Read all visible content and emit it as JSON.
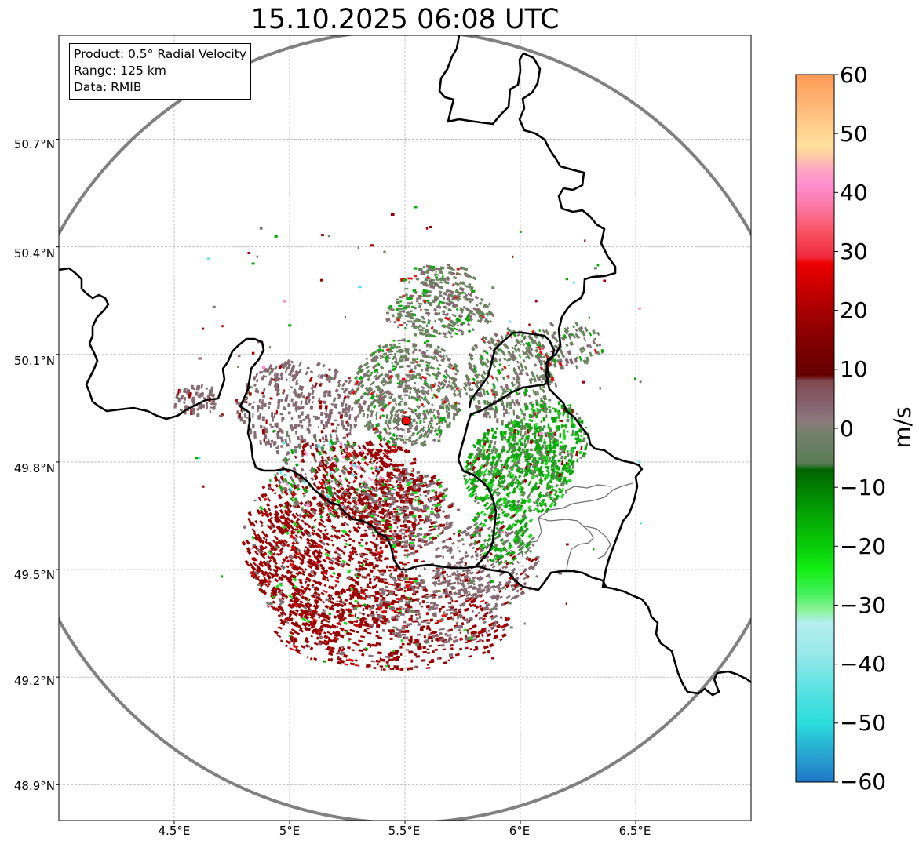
{
  "title": "15.10.2025 06:08 UTC",
  "info_box": {
    "product": "Product: 0.5° Radial Velocity",
    "range": "Range: 125 km",
    "data": "Data: RMIB"
  },
  "axes": {
    "lat_labels": [
      "50.7°N",
      "50.4°N",
      "50.1°N",
      "49.8°N",
      "49.5°N",
      "49.2°N",
      "48.9°N"
    ],
    "lon_labels": [
      "4.5°E",
      "5°E",
      "5.5°E",
      "6°E",
      "6.5°E"
    ],
    "lat_values": [
      50.7,
      50.4,
      50.1,
      49.8,
      49.5,
      49.2,
      48.9
    ],
    "lon_values": [
      4.5,
      5.0,
      5.5,
      6.0,
      6.5
    ],
    "lon_range": [
      4.0,
      7.0
    ],
    "lat_range": [
      48.8,
      50.99
    ]
  },
  "radar_site": {
    "lon": 5.505,
    "lat": 49.915
  },
  "colorbar": {
    "unit": "m/s",
    "vmin": -60,
    "vmax": 60,
    "ticks": [
      "60",
      "50",
      "40",
      "30",
      "20",
      "10",
      "0",
      "−10",
      "−20",
      "−30",
      "−40",
      "−50",
      "−60"
    ],
    "stops": [
      {
        "v": -60,
        "c": "#1f78c8"
      },
      {
        "v": -55,
        "c": "#28a8d2"
      },
      {
        "v": -50,
        "c": "#2adcdc"
      },
      {
        "v": -44,
        "c": "#5ce2e2"
      },
      {
        "v": -38,
        "c": "#9ae8ea"
      },
      {
        "v": -33,
        "c": "#b4eef0"
      },
      {
        "v": -31,
        "c": "#8df29e"
      },
      {
        "v": -28,
        "c": "#44f05a"
      },
      {
        "v": -24,
        "c": "#14ee14"
      },
      {
        "v": -20,
        "c": "#08cc08"
      },
      {
        "v": -14,
        "c": "#03a003"
      },
      {
        "v": -7,
        "c": "#006400"
      },
      {
        "v": -6,
        "c": "#5a7c56"
      },
      {
        "v": -1,
        "c": "#73826c"
      },
      {
        "v": 1,
        "c": "#8c7c7c"
      },
      {
        "v": 4,
        "c": "#866370"
      },
      {
        "v": 8,
        "c": "#824850"
      },
      {
        "v": 9,
        "c": "#650000"
      },
      {
        "v": 14,
        "c": "#7e0000"
      },
      {
        "v": 20,
        "c": "#a80000"
      },
      {
        "v": 25,
        "c": "#d40000"
      },
      {
        "v": 28,
        "c": "#ee0000"
      },
      {
        "v": 29,
        "c": "#f0283c"
      },
      {
        "v": 33,
        "c": "#f85060"
      },
      {
        "v": 38,
        "c": "#fc7aa8"
      },
      {
        "v": 41,
        "c": "#ff8ccc"
      },
      {
        "v": 44,
        "c": "#ffa6c6"
      },
      {
        "v": 46,
        "c": "#ffc8a8"
      },
      {
        "v": 48,
        "c": "#ffe09a"
      },
      {
        "v": 52,
        "c": "#ffc888"
      },
      {
        "v": 56,
        "c": "#ffb070"
      },
      {
        "v": 60,
        "c": "#ff9a55"
      }
    ]
  },
  "velocity_colors": {
    "inbound_red": "#9a0000",
    "near_zero_mauve": "#866a72",
    "near_zero_green": "#6a8460",
    "outbound_green": "#0aa80a",
    "bright_green": "#1ed81e",
    "bright_red": "#e01010",
    "pink": "#ff8ccc",
    "cyan": "#60e6e6"
  }
}
